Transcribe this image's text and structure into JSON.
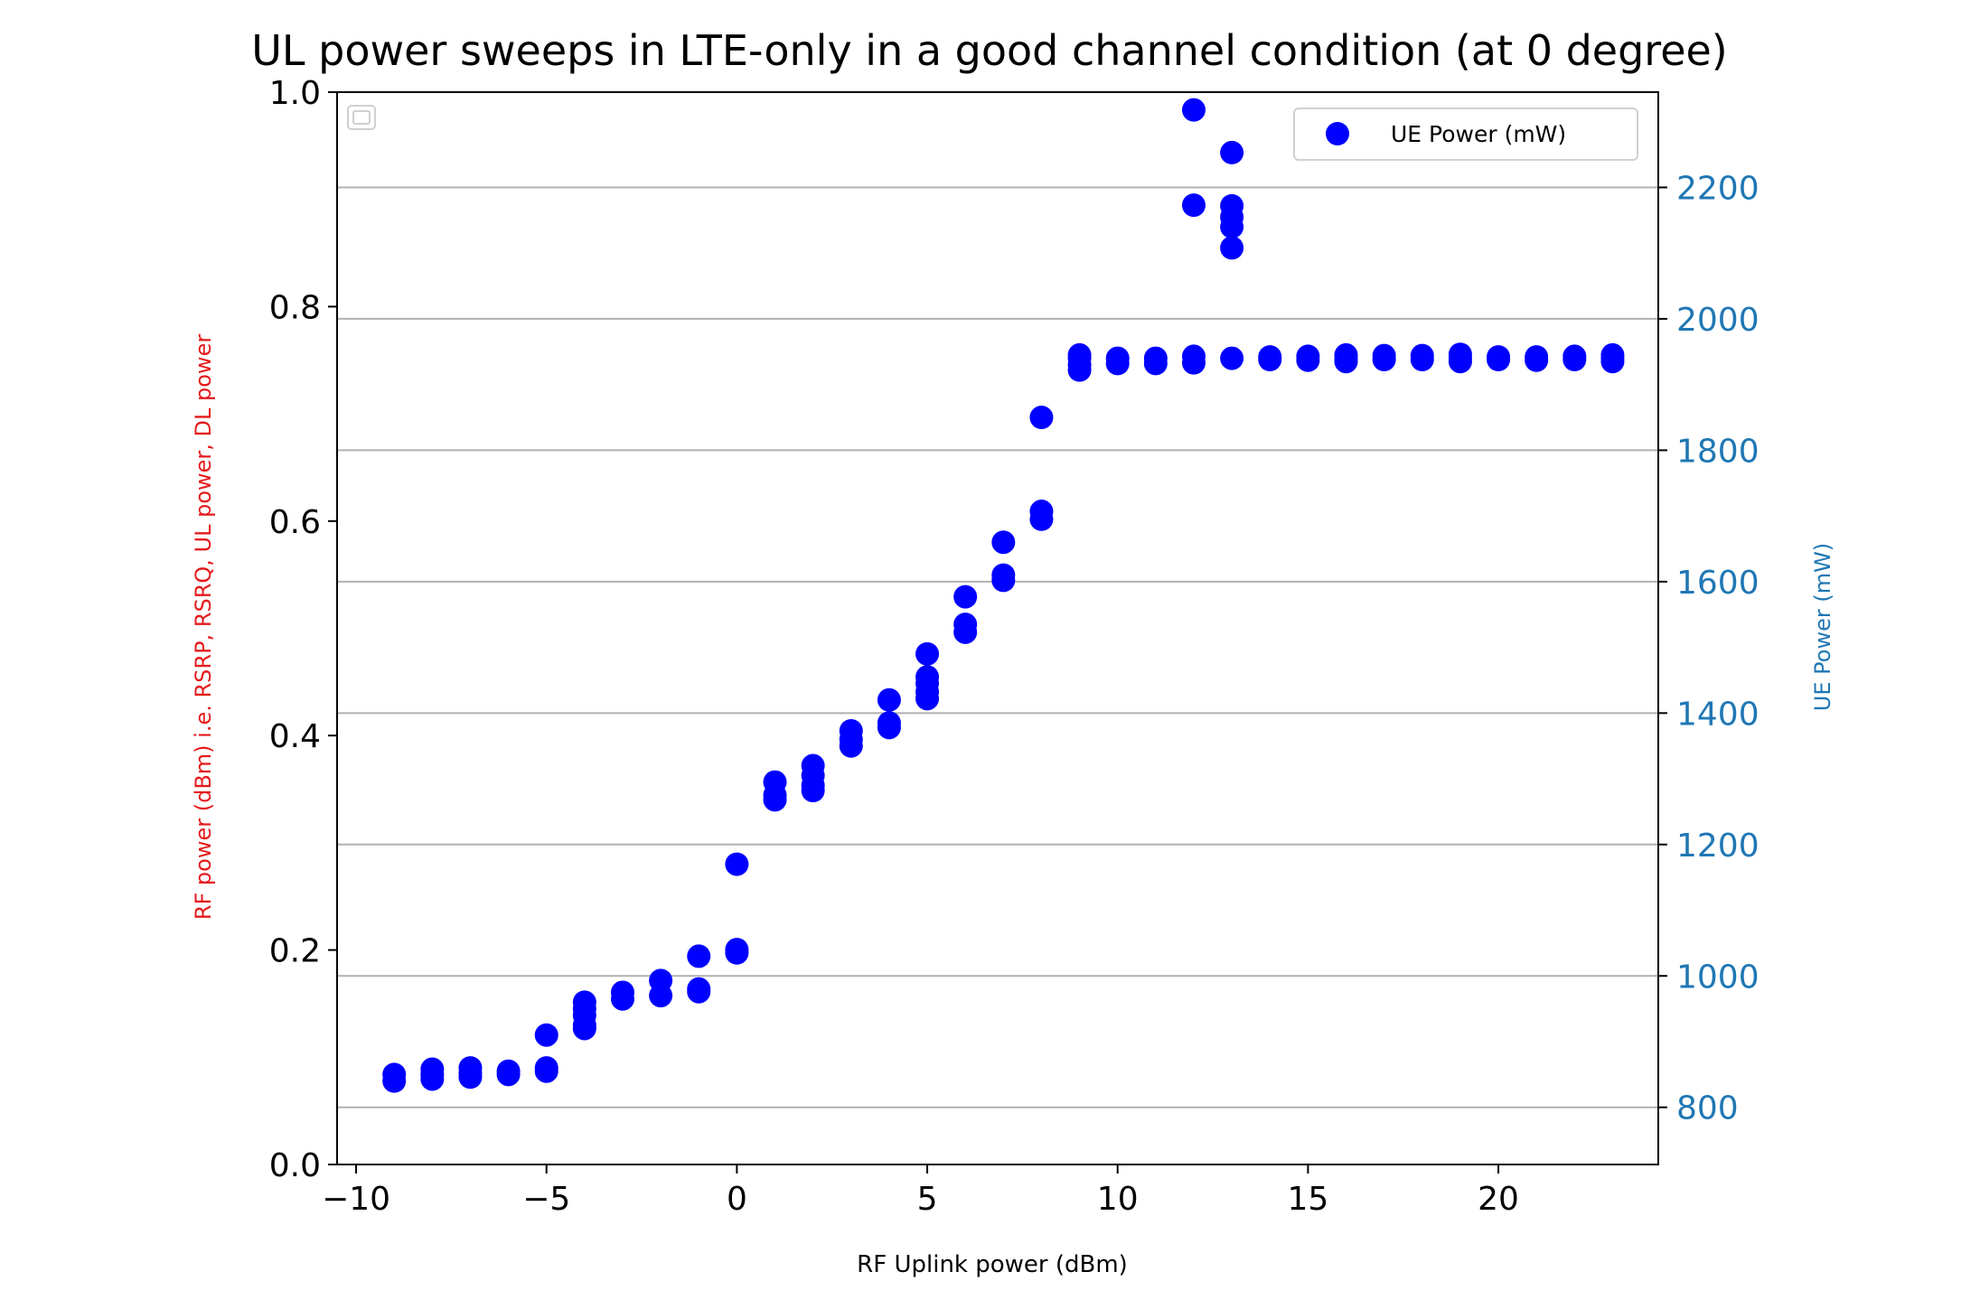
{
  "chart_data": {
    "type": "scatter",
    "title": "UL power sweeps in LTE-only in a good channel condition (at 0 degree)",
    "xlabel": "RF Uplink power (dBm)",
    "ylabel_left": "RF power (dBm) i.e. RSRP, RSRQ, UL power, DL power",
    "ylabel_right": "UE Power (mW)",
    "xlim": [
      -10.5,
      24.2
    ],
    "ylim_left": [
      0.0,
      1.0
    ],
    "ylim_right": [
      713,
      2345
    ],
    "x_ticks": [
      -10,
      -5,
      0,
      5,
      10,
      15,
      20
    ],
    "x_tick_labels": [
      "−10",
      "−5",
      "0",
      "5",
      "10",
      "15",
      "20"
    ],
    "y_left_ticks": [
      0.0,
      0.2,
      0.4,
      0.6,
      0.8,
      1.0
    ],
    "y_left_tick_labels": [
      "0.0",
      "0.2",
      "0.4",
      "0.6",
      "0.8",
      "1.0"
    ],
    "y_right_ticks": [
      800,
      1000,
      1200,
      1400,
      1600,
      1800,
      2000,
      2200
    ],
    "y_right_tick_labels": [
      "800",
      "1000",
      "1200",
      "1400",
      "1600",
      "1800",
      "2000",
      "2200"
    ],
    "grid": "horizontal on right axis",
    "legend_left": {
      "position": "top-left",
      "entries": []
    },
    "legend_right": {
      "position": "top-right",
      "entries": [
        {
          "label": "UE Power (mW)",
          "marker": "circle",
          "color": "#0000ff"
        }
      ]
    },
    "colors": {
      "points": "#0000ff",
      "right_axis": "#1f77b4",
      "left_label": "#e41a1c",
      "grid": "#b0b0b0"
    },
    "series": [
      {
        "name": "UE Power (mW)",
        "axis": "right",
        "points": [
          [
            -9,
            850
          ],
          [
            -9,
            840
          ],
          [
            -8,
            858
          ],
          [
            -8,
            850
          ],
          [
            -8,
            843
          ],
          [
            -7,
            860
          ],
          [
            -7,
            852
          ],
          [
            -7,
            846
          ],
          [
            -6,
            855
          ],
          [
            -6,
            850
          ],
          [
            -5,
            910
          ],
          [
            -5,
            860
          ],
          [
            -5,
            855
          ],
          [
            -4,
            960
          ],
          [
            -4,
            950
          ],
          [
            -4,
            940
          ],
          [
            -4,
            925
          ],
          [
            -4,
            920
          ],
          [
            -3,
            975
          ],
          [
            -3,
            965
          ],
          [
            -2,
            993
          ],
          [
            -2,
            970
          ],
          [
            -1,
            1030
          ],
          [
            -1,
            980
          ],
          [
            -1,
            976
          ],
          [
            0,
            1170
          ],
          [
            0,
            1040
          ],
          [
            0,
            1035
          ],
          [
            1,
            1295
          ],
          [
            1,
            1275
          ],
          [
            1,
            1268
          ],
          [
            2,
            1320
          ],
          [
            2,
            1305
          ],
          [
            2,
            1290
          ],
          [
            2,
            1282
          ],
          [
            3,
            1373
          ],
          [
            3,
            1360
          ],
          [
            3,
            1350
          ],
          [
            4,
            1420
          ],
          [
            4,
            1385
          ],
          [
            4,
            1378
          ],
          [
            5,
            1490
          ],
          [
            5,
            1455
          ],
          [
            5,
            1445
          ],
          [
            5,
            1432
          ],
          [
            5,
            1422
          ],
          [
            6,
            1577
          ],
          [
            6,
            1535
          ],
          [
            6,
            1523
          ],
          [
            7,
            1660
          ],
          [
            7,
            1610
          ],
          [
            7,
            1602
          ],
          [
            8,
            1850
          ],
          [
            8,
            1707
          ],
          [
            8,
            1695
          ],
          [
            9,
            1945
          ],
          [
            9,
            1940
          ],
          [
            9,
            1930
          ],
          [
            9,
            1922
          ],
          [
            10,
            1940
          ],
          [
            10,
            1932
          ],
          [
            11,
            1940
          ],
          [
            11,
            1932
          ],
          [
            12,
            2318
          ],
          [
            12,
            2173
          ],
          [
            12,
            1943
          ],
          [
            12,
            1933
          ],
          [
            13,
            2253
          ],
          [
            13,
            2172
          ],
          [
            13,
            2155
          ],
          [
            13,
            2140
          ],
          [
            13,
            2108
          ],
          [
            13,
            1940
          ],
          [
            14,
            1942
          ],
          [
            14,
            1938
          ],
          [
            15,
            1943
          ],
          [
            15,
            1937
          ],
          [
            16,
            1945
          ],
          [
            16,
            1940
          ],
          [
            16,
            1935
          ],
          [
            17,
            1944
          ],
          [
            17,
            1938
          ],
          [
            18,
            1944
          ],
          [
            18,
            1938
          ],
          [
            19,
            1946
          ],
          [
            19,
            1940
          ],
          [
            19,
            1935
          ],
          [
            20,
            1942
          ],
          [
            20,
            1938
          ],
          [
            21,
            1942
          ],
          [
            21,
            1937
          ],
          [
            22,
            1943
          ],
          [
            22,
            1938
          ],
          [
            23,
            1945
          ],
          [
            23,
            1940
          ],
          [
            23,
            1935
          ]
        ]
      }
    ]
  }
}
